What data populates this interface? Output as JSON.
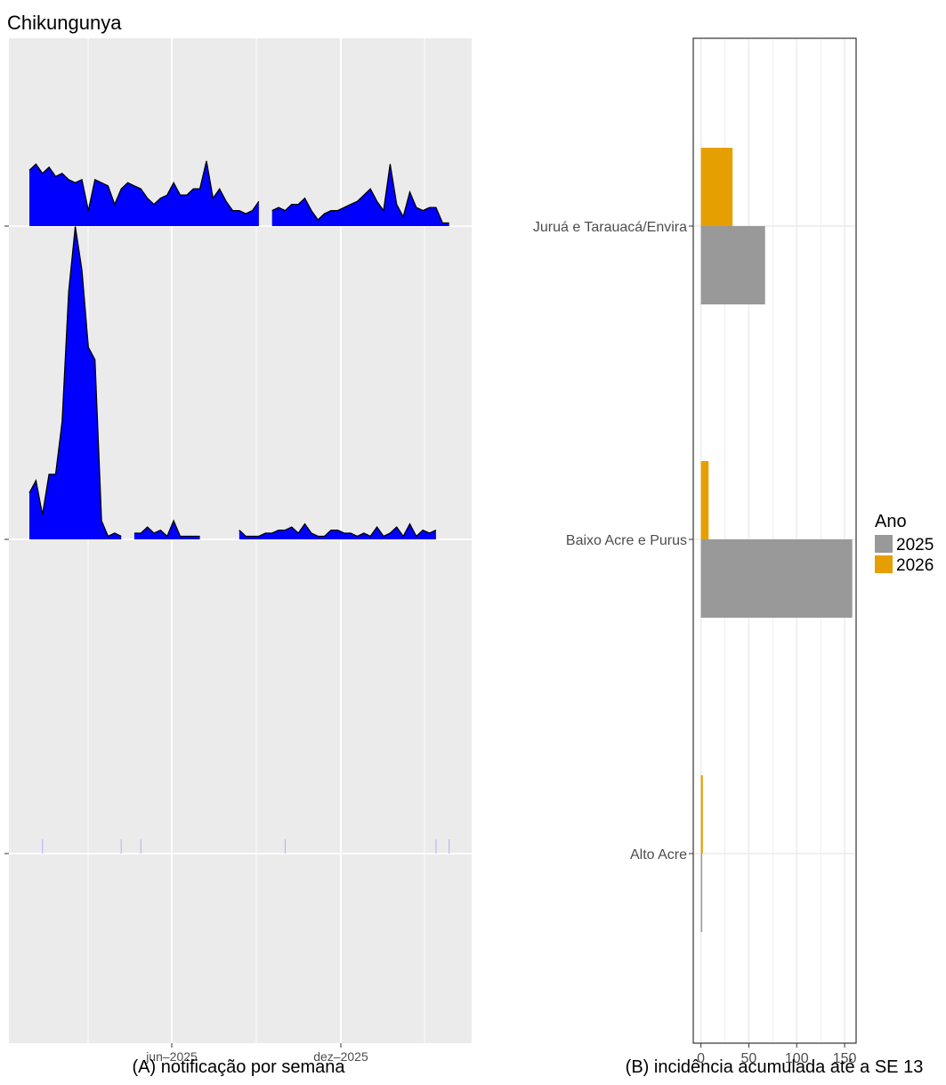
{
  "title": "Chikungunya",
  "chart_data": [
    {
      "type": "area",
      "caption": "(A) notificação por semana",
      "x_tick_labels": [
        "jun–2025",
        "dez–2025"
      ],
      "fill_color": "#0000ff",
      "series": [
        {
          "values": [
            18,
            20,
            17,
            19,
            16,
            17,
            15,
            14,
            15,
            5,
            15,
            14,
            13,
            7,
            12,
            14,
            13,
            12,
            9,
            7,
            9,
            10,
            14,
            10,
            10,
            12,
            12,
            21,
            9,
            12,
            8,
            5,
            5,
            4,
            5,
            8,
            null,
            5,
            6,
            5,
            7,
            7,
            9,
            5,
            2,
            4,
            5,
            5,
            6,
            7,
            8,
            10,
            12,
            8,
            5,
            20,
            7,
            3,
            11,
            6,
            5,
            6,
            6,
            1,
            1
          ]
        },
        {
          "values": [
            15,
            19,
            8,
            21,
            21,
            38,
            80,
            101,
            87,
            62,
            58,
            6,
            1,
            2,
            1,
            null,
            2,
            2,
            4,
            2,
            3,
            1,
            6,
            1,
            1,
            1,
            1,
            null,
            null,
            null,
            null,
            null,
            3,
            1,
            1,
            1,
            2,
            2,
            3,
            3,
            4,
            2,
            5,
            2,
            1,
            1,
            3,
            3,
            2,
            2,
            1,
            2,
            1,
            4,
            1,
            2,
            4,
            1,
            5,
            1,
            3,
            2,
            3,
            null,
            null
          ]
        },
        {
          "values": [
            0,
            0,
            3,
            0,
            0,
            0,
            0,
            0,
            0,
            0,
            0,
            0,
            0,
            0,
            3,
            0,
            0,
            3,
            0,
            0,
            0,
            0,
            0,
            0,
            0,
            0,
            0,
            0,
            0,
            0,
            0,
            0,
            0,
            0,
            0,
            0,
            0,
            0,
            0,
            3,
            0,
            0,
            0,
            0,
            0,
            0,
            0,
            0,
            0,
            0,
            0,
            0,
            0,
            0,
            0,
            0,
            0,
            0,
            0,
            0,
            0,
            0,
            3,
            0,
            3
          ]
        }
      ]
    },
    {
      "type": "bar",
      "orientation": "horizontal",
      "caption": "(B) incidência acumulada até a SE 13",
      "categories": [
        "Juruá e Tarauacá/Envira",
        "Baixo Acre e Purus",
        "Alto Acre"
      ],
      "x_ticks": [
        "0",
        "50",
        "100",
        "150"
      ],
      "xlim": [
        -8,
        162
      ],
      "legend": {
        "title": "Ano",
        "position": "right"
      },
      "series": [
        {
          "name": "2025",
          "color": "#999999",
          "values": [
            67,
            158,
            1
          ]
        },
        {
          "name": "2026",
          "color": "#e69f00",
          "values": [
            33,
            8,
            2
          ]
        }
      ]
    }
  ]
}
